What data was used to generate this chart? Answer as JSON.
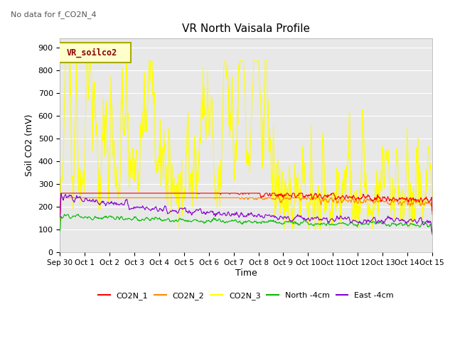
{
  "title": "VR North Vaisala Profile",
  "subtitle": "No data for f_CO2N_4",
  "ylabel": "Soil CO2 (mV)",
  "xlabel": "Time",
  "ylim": [
    0,
    940
  ],
  "yticks": [
    0,
    100,
    200,
    300,
    400,
    500,
    600,
    700,
    800,
    900
  ],
  "legend_box_label": "VR_soilco2",
  "legend_box_facecolor": "#ffffcc",
  "legend_box_edgecolor": "#aaaa00",
  "plot_bg": "#e8e8e8",
  "series": {
    "CO2N_1": {
      "color": "#ff0000",
      "lw": 0.8
    },
    "CO2N_2": {
      "color": "#ff8800",
      "lw": 0.8
    },
    "CO2N_3": {
      "color": "#ffff00",
      "lw": 0.8
    },
    "North_4cm": {
      "color": "#00bb00",
      "lw": 0.8
    },
    "East_4cm": {
      "color": "#8800cc",
      "lw": 0.8
    }
  },
  "legend": [
    {
      "label": "CO2N_1",
      "color": "#ff0000"
    },
    {
      "label": "CO2N_2",
      "color": "#ff8800"
    },
    {
      "label": "CO2N_3",
      "color": "#ffff00"
    },
    {
      "label": "North -4cm",
      "color": "#00bb00"
    },
    {
      "label": "East -4cm",
      "color": "#8800cc"
    }
  ],
  "xtick_labels": [
    "Sep 30",
    "Oct 1",
    "Oct 2",
    "Oct 3",
    "Oct 4",
    "Oct 5",
    "Oct 6",
    "Oct 7",
    "Oct 8",
    "Oct 9",
    "Oct 10",
    "Oct 11",
    "Oct 12",
    "Oct 13",
    "Oct 14",
    "Oct 15"
  ],
  "num_days": 16,
  "figsize": [
    6.4,
    4.8
  ],
  "dpi": 100
}
